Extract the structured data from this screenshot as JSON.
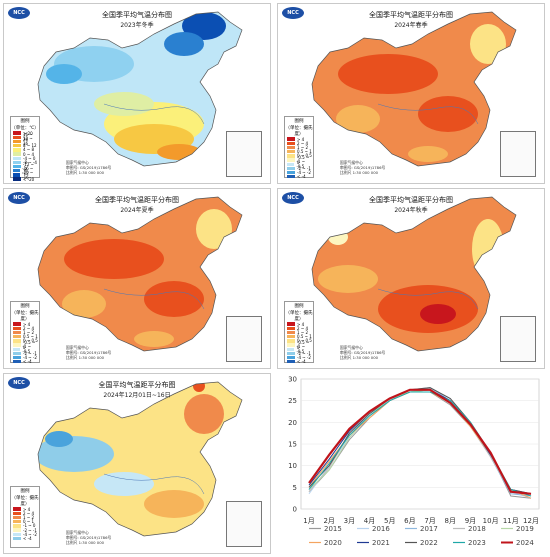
{
  "panels": [
    {
      "title": "全国季平均气温分布图",
      "subtitle": "2023年冬季",
      "scheme": "temp",
      "legend_title": "图例",
      "legend_unit": "（单位：℃）",
      "legend_items": [
        "> 20",
        "16 ~ 20",
        "12 ~ 16",
        "8 ~ 12",
        "4 ~ 8",
        "0 ~ 4",
        "-4 ~ 0",
        "-8 ~ -4",
        "-12 ~ -8",
        "-16 ~ -12",
        "-20 ~ -16",
        "< -20"
      ],
      "credit": [
        "国家气候中心",
        "审图号: GS(2019)1786号",
        "比例尺 1:30 000 000"
      ]
    },
    {
      "title": "全国季平均气温距平分布图",
      "subtitle": "2024年春季",
      "scheme": "warm",
      "legend_title": "图例",
      "legend_unit": "（单位：摄氏度）",
      "legend_items": [
        "> 4",
        "2 ~ 4",
        "1 ~ 2",
        "0.5 ~ 1",
        "0 ~ 0.5",
        "-0.5 ~ 0",
        "-1 ~ -0.5",
        "-2 ~ -1",
        "-4 ~ -2",
        "< -4"
      ],
      "credit": [
        "国家气候中心",
        "审图号: GS(2019)1786号",
        "比例尺 1:30 000 000"
      ]
    },
    {
      "title": "全国季平均气温距平分布图",
      "subtitle": "2024年夏季",
      "scheme": "warm",
      "legend_title": "图例",
      "legend_unit": "（单位：摄氏度）",
      "legend_items": [
        "> 4",
        "2 ~ 4",
        "1 ~ 2",
        "0.5 ~ 1",
        "0 ~ 0.5",
        "-0.5 ~ 0",
        "-1 ~ -0.5",
        "-2 ~ -1",
        "-4 ~ -2",
        "< -4"
      ],
      "credit": [
        "国家气候中心",
        "审图号: GS(2019)1786号",
        "比例尺 1:30 000 000"
      ]
    },
    {
      "title": "全国季平均气温距平分布图",
      "subtitle": "2024年秋季",
      "scheme": "warm2",
      "legend_title": "图例",
      "legend_unit": "（单位：摄氏度）",
      "legend_items": [
        "> 4",
        "2 ~ 4",
        "1 ~ 2",
        "0.5 ~ 1",
        "0 ~ 0.5",
        "-0.5 ~ 0",
        "-1 ~ -0.5",
        "-2 ~ -1",
        "-4 ~ -2",
        "< -4"
      ],
      "credit": [
        "国家气候中心",
        "审图号: GS(2019)1786号",
        "比例尺 1:30 000 000"
      ]
    },
    {
      "title": "全国平均气温距平分布图",
      "subtitle": "2024年12月01日~16日",
      "scheme": "mixed",
      "legend_title": "图例",
      "legend_unit": "（单位：摄氏度）",
      "legend_items": [
        "> 4",
        "2 ~ 4",
        "1 ~ 2",
        "0 ~ 1",
        "-1 ~ 0",
        "-2 ~ -1",
        "-4 ~ -2",
        "< -4"
      ],
      "credit": [
        "国家气候中心",
        "审图号: GS(2019)1786号",
        "比例尺 1:30 000 000"
      ]
    }
  ],
  "logo_text": "NCC",
  "colors": {
    "temp": [
      "#c8161d",
      "#e8501e",
      "#f39a2b",
      "#f7c843",
      "#fbf07a",
      "#dfeea4",
      "#bfe6f7",
      "#8fd1f0",
      "#54b4e8",
      "#2a80d0",
      "#0b4fb3",
      "#072c7f"
    ],
    "warm": [
      "#c8161d",
      "#e8501e",
      "#f08a4b",
      "#f6b45a",
      "#fce386",
      "#fdf6c0",
      "#c6e7f6",
      "#8fcde9",
      "#4aa3dc",
      "#1f5fb5"
    ]
  },
  "chart_data": {
    "type": "line",
    "categories": [
      "1月",
      "2月",
      "3月",
      "4月",
      "5月",
      "6月",
      "7月",
      "8月",
      "9月",
      "10月",
      "11月",
      "12月"
    ],
    "ylim": [
      0,
      30
    ],
    "yticks": [
      0,
      5,
      10,
      15,
      20,
      25,
      30
    ],
    "series": [
      {
        "name": "2015",
        "color": "#9a9a9a",
        "values": [
          4.0,
          9.0,
          16.0,
          21.0,
          25.0,
          27.0,
          27.0,
          24.0,
          19.0,
          12.5,
          3.0,
          2.5
        ]
      },
      {
        "name": "2016",
        "color": "#b9d3ee",
        "values": [
          3.5,
          10.0,
          16.5,
          21.5,
          25.5,
          27.0,
          28.0,
          25.5,
          19.0,
          13.0,
          4.0,
          2.5
        ]
      },
      {
        "name": "2017",
        "color": "#8fb8de",
        "values": [
          4.5,
          10.5,
          17.0,
          22.0,
          25.0,
          27.5,
          28.0,
          25.0,
          19.5,
          12.0,
          3.5,
          3.0
        ]
      },
      {
        "name": "2018",
        "color": "#bdbdbd",
        "values": [
          4.0,
          9.5,
          17.5,
          22.5,
          25.5,
          27.0,
          27.5,
          25.0,
          19.0,
          12.0,
          4.0,
          3.5
        ]
      },
      {
        "name": "2019",
        "color": "#b6d7a8",
        "values": [
          4.5,
          9.0,
          16.5,
          21.5,
          25.5,
          27.0,
          27.5,
          24.5,
          19.5,
          13.0,
          4.5,
          3.0
        ]
      },
      {
        "name": "2020",
        "color": "#f4a460",
        "values": [
          5.0,
          11.0,
          17.0,
          21.0,
          25.0,
          27.0,
          27.0,
          24.5,
          19.0,
          12.5,
          4.5,
          2.5
        ]
      },
      {
        "name": "2021",
        "color": "#1f3a93",
        "values": [
          5.5,
          11.5,
          18.0,
          22.5,
          25.5,
          27.5,
          27.5,
          25.0,
          19.5,
          12.5,
          4.5,
          3.5
        ]
      },
      {
        "name": "2022",
        "color": "#555555",
        "values": [
          5.0,
          10.0,
          17.5,
          22.0,
          25.5,
          27.5,
          28.0,
          25.5,
          20.0,
          13.0,
          4.5,
          3.5
        ]
      },
      {
        "name": "2023",
        "color": "#1fa8a8",
        "values": [
          4.5,
          10.5,
          17.0,
          21.5,
          25.0,
          27.0,
          27.0,
          25.0,
          20.0,
          13.0,
          4.5,
          3.0
        ]
      },
      {
        "name": "2024",
        "color": "#c0141b",
        "values": [
          6.0,
          12.5,
          18.5,
          22.5,
          25.5,
          27.5,
          27.5,
          24.5,
          19.5,
          13.0,
          4.0,
          3.5
        ]
      }
    ]
  }
}
